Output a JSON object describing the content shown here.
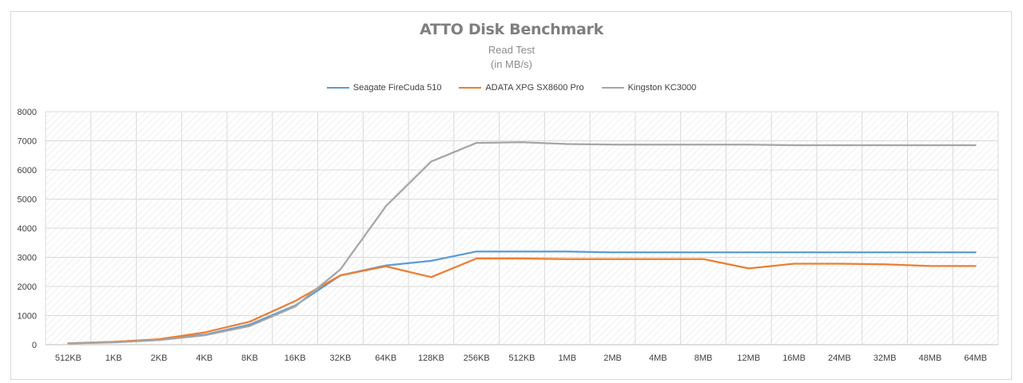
{
  "chart_data": {
    "type": "line",
    "title": "ATTO Disk Benchmark",
    "subtitle": "Read Test",
    "subtitle2": "(in MB/s)",
    "xlabel": "",
    "ylabel": "",
    "ylim": [
      0,
      8000
    ],
    "yticks": [
      0,
      1000,
      2000,
      3000,
      4000,
      5000,
      6000,
      7000,
      8000
    ],
    "grid": true,
    "legend_position": "top",
    "categories": [
      "512KB",
      "1KB",
      "2KB",
      "4KB",
      "8KB",
      "16KB",
      "32KB",
      "64KB",
      "128KB",
      "256KB",
      "512KB",
      "1MB",
      "2MB",
      "4MB",
      "8MB",
      "12MB",
      "16MB",
      "24MB",
      "32MB",
      "48MB",
      "64MB"
    ],
    "series": [
      {
        "name": "Seagate FireCuda 510",
        "color": "#5b9bd5",
        "values": [
          50,
          90,
          170,
          340,
          690,
          1340,
          2380,
          2720,
          2880,
          3200,
          3200,
          3200,
          3170,
          3170,
          3170,
          3170,
          3170,
          3170,
          3170,
          3170,
          3170
        ]
      },
      {
        "name": "ADATA XPG SX8600 Pro",
        "color": "#ed7d31",
        "values": [
          50,
          100,
          190,
          420,
          790,
          1500,
          2380,
          2690,
          2320,
          2960,
          2960,
          2940,
          2940,
          2940,
          2940,
          2620,
          2780,
          2780,
          2760,
          2700,
          2700
        ]
      },
      {
        "name": "Kingston KC3000",
        "color": "#a5a5a5",
        "values": [
          40,
          80,
          160,
          320,
          640,
          1310,
          2590,
          4750,
          6290,
          6930,
          6950,
          6890,
          6870,
          6870,
          6870,
          6870,
          6850,
          6850,
          6850,
          6850,
          6850
        ]
      }
    ]
  }
}
